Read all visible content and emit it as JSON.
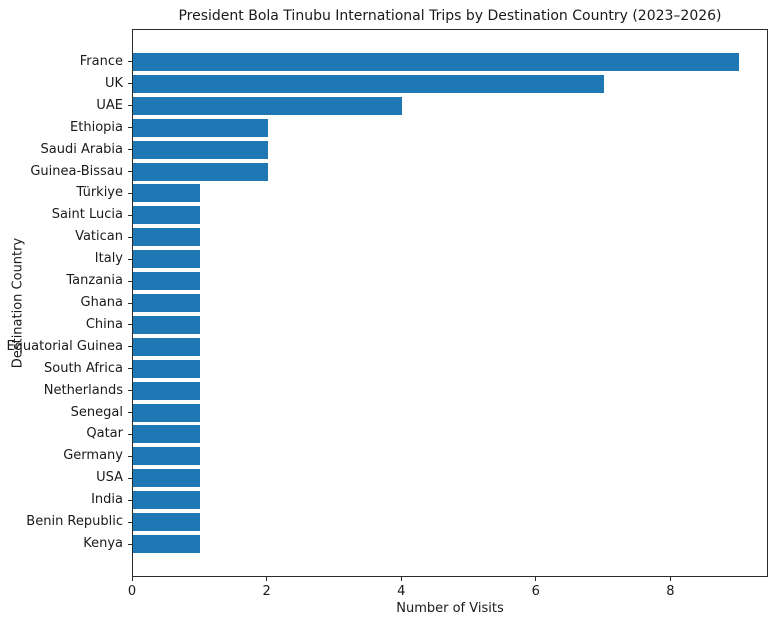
{
  "chart_data": {
    "type": "bar",
    "orientation": "horizontal",
    "title": "President Bola Tinubu International Trips by Destination Country (2023–2026)",
    "xlabel": "Number of Visits",
    "ylabel": "Destination Country",
    "categories": [
      "France",
      "UK",
      "UAE",
      "Ethiopia",
      "Saudi Arabia",
      "Guinea-Bissau",
      "Türkiye",
      "Saint Lucia",
      "Vatican",
      "Italy",
      "Tanzania",
      "Ghana",
      "China",
      "Equatorial Guinea",
      "South Africa",
      "Netherlands",
      "Senegal",
      "Qatar",
      "Germany",
      "USA",
      "India",
      "Benin Republic",
      "Kenya"
    ],
    "values": [
      9,
      7,
      4,
      2,
      2,
      2,
      1,
      1,
      1,
      1,
      1,
      1,
      1,
      1,
      1,
      1,
      1,
      1,
      1,
      1,
      1,
      1,
      1
    ],
    "xticks": [
      0,
      2,
      4,
      6,
      8
    ],
    "xlim": [
      0,
      9.45
    ],
    "grid": false,
    "legend": null,
    "bar_color": "#1f77b4",
    "axis_color": "#2b2b2b",
    "text_color": "#1a1a1a"
  }
}
